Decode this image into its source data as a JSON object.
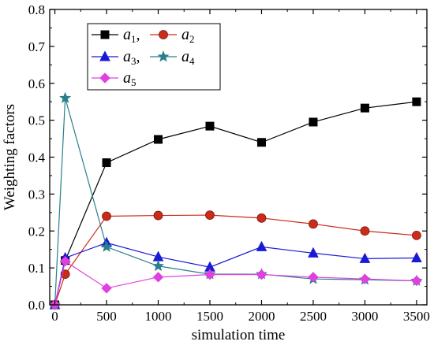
{
  "chart_data": {
    "type": "line",
    "xlabel": "simulation time",
    "ylabel": "Weighting factors",
    "xlim": [
      -50,
      3600
    ],
    "ylim": [
      0,
      0.8
    ],
    "xticks": [
      0,
      500,
      1000,
      1500,
      2000,
      2500,
      3000,
      3500
    ],
    "yticks": [
      0.0,
      0.1,
      0.2,
      0.3,
      0.4,
      0.5,
      0.6,
      0.7,
      0.8
    ],
    "xtick_labels": [
      "0",
      "500",
      "1000",
      "1500",
      "2000",
      "2500",
      "3000",
      "3500"
    ],
    "ytick_labels": [
      "0.0",
      "0.1",
      "0.2",
      "0.3",
      "0.4",
      "0.5",
      "0.6",
      "0.7",
      "0.8"
    ],
    "grid": false,
    "legend_position": "top-left",
    "x": [
      0,
      100,
      500,
      1000,
      1500,
      2000,
      2500,
      3000,
      3500
    ],
    "series": [
      {
        "name": "a1",
        "legend_base": "a",
        "legend_sub": "1",
        "legend_suffix": ",",
        "color": "#000000",
        "marker": "square",
        "values": [
          0,
          0.12,
          0.385,
          0.448,
          0.484,
          0.44,
          0.495,
          0.533,
          0.55
        ]
      },
      {
        "name": "a2",
        "legend_base": "a",
        "legend_sub": "2",
        "legend_suffix": "",
        "color": "#cc2a1a",
        "marker": "circle",
        "values": [
          0,
          0.083,
          0.24,
          0.242,
          0.243,
          0.235,
          0.219,
          0.2,
          0.188
        ]
      },
      {
        "name": "a3",
        "legend_base": "a",
        "legend_sub": "3",
        "legend_suffix": ",",
        "color": "#1a1ad6",
        "marker": "triangle",
        "values": [
          0,
          0.127,
          0.168,
          0.13,
          0.102,
          0.157,
          0.14,
          0.125,
          0.127
        ]
      },
      {
        "name": "a4",
        "legend_base": "a",
        "legend_sub": "4",
        "legend_suffix": "",
        "color": "#2a7f8a",
        "marker": "star",
        "values": [
          0,
          0.56,
          0.157,
          0.105,
          0.083,
          0.083,
          0.07,
          0.068,
          0.065
        ]
      },
      {
        "name": "a5",
        "legend_base": "a",
        "legend_sub": "5",
        "legend_suffix": "",
        "color": "#e040e0",
        "marker": "diamond",
        "values": [
          0,
          0.118,
          0.045,
          0.075,
          0.082,
          0.082,
          0.075,
          0.07,
          0.065
        ]
      }
    ]
  }
}
